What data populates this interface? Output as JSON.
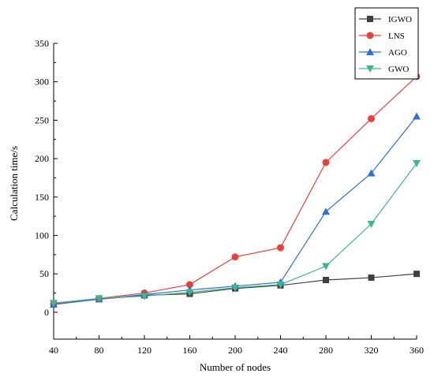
{
  "chart_data": {
    "type": "line",
    "xlabel": "Number of nodes",
    "ylabel": "Calculation time/s",
    "x": [
      40,
      80,
      120,
      160,
      200,
      240,
      280,
      320,
      360
    ],
    "xlim": [
      40,
      360
    ],
    "ylim": [
      -35,
      350
    ],
    "xticks": [
      "40",
      "80",
      "120",
      "160",
      "200",
      "240",
      "280",
      "320",
      "360"
    ],
    "yticks": [
      "0",
      "50",
      "100",
      "150",
      "200",
      "250",
      "300",
      "350"
    ],
    "grid": false,
    "legend_position": "top-right",
    "series": [
      {
        "name": "IGWO",
        "color": "#404040",
        "marker": "square",
        "values": [
          11,
          17,
          22,
          24,
          31,
          35,
          42,
          45,
          50
        ]
      },
      {
        "name": "LNS",
        "color": "#e8413c",
        "marker": "circle",
        "values": [
          11,
          18,
          25,
          36,
          72,
          84,
          195,
          252,
          307
        ]
      },
      {
        "name": "AGO",
        "color": "#2f6fd6",
        "marker": "triangle-up",
        "values": [
          10,
          17,
          23,
          29,
          34,
          39,
          131,
          181,
          255
        ]
      },
      {
        "name": "GWO",
        "color": "#3cb88a",
        "marker": "triangle-down",
        "values": [
          12,
          18,
          21,
          26,
          32,
          36,
          60,
          115,
          194
        ]
      }
    ]
  }
}
